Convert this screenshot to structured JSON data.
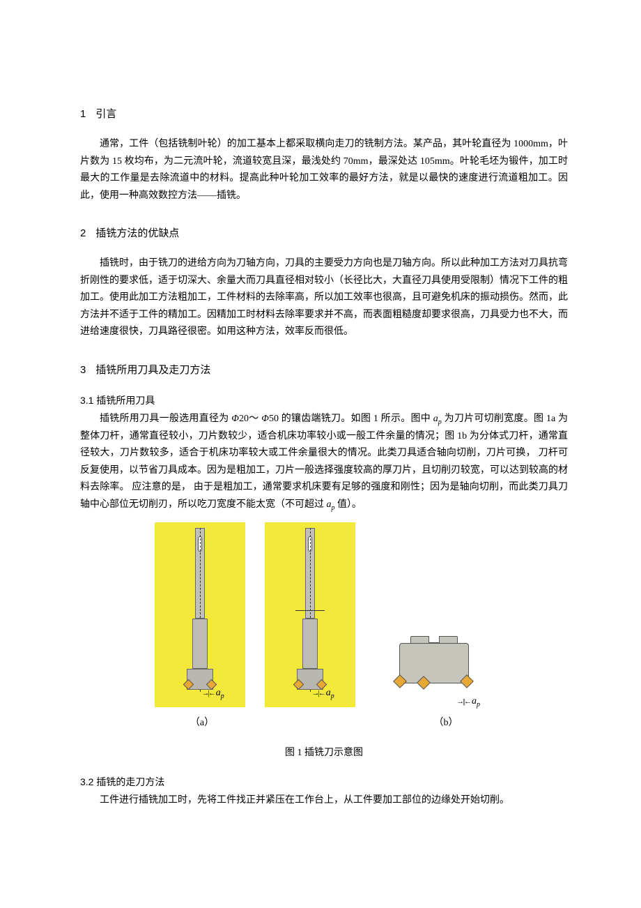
{
  "sections": {
    "s1": {
      "num": "1",
      "title": "引言",
      "p1": "通常，工件（包括铣制叶轮）的加工基本上都采取横向走刀的铣制方法。某产品，其叶轮直径为 1000mm，叶片数为 15 枚均布，为二元流叶轮，流道较宽且深，最浅处约 70mm，最深处达 105mm。叶轮毛坯为锻件，加工时最大的工作量是去除流道中的材料。提高此种叶轮加工效率的最好方法，就是以最快的速度进行流道粗加工。因此，使用一种高效数控方法——插铣。"
    },
    "s2": {
      "num": "2",
      "title": "插铣方法的优缺点",
      "p1": "插铣时，由于铣刀的进给方向为刀轴方向，刀具的主要受力方向也是刀轴方向。所以此种加工方法对刀具抗弯折刚性的要求低，适于切深大、余量大而刀具直径相对较小（长径比大，大直径刀具使用受限制）情况下工件的粗加工。使用此加工方法粗加工，工件材料的去除率高，所以加工效率也很高，且可避免机床的振动损伤。然而，此方法并不适于工件的精加工。因精加工时材料去除率要求并不高，而表面粗糙度却要求很高，刀具受力也不大，而进给速度很快，刀具路径很密。如用这种方法，效率反而很低。"
    },
    "s3": {
      "num": "3",
      "title": "插铣所用刀具及走刀方法",
      "s31": {
        "num": "3.1",
        "title": "插铣所用刀具",
        "p_a": "插铣所用刀具一般选用直径为 ",
        "phi1": "Φ",
        "d1": "20～ ",
        "phi2": "Φ",
        "d2": "50 的镶齿端铣刀。如图 1 所示。图中 ",
        "p_b": "为刀片可切削宽度。图 1a 为整体刀杆，通常直径较小，刀片数较少，适合机床功率较小或一般工件余量的情况；图 1b 为分体式刀杆，通常直径较大，刀片数较多，适合于机床功率较大或工件余量很大的情况。此类刀具适合轴向切削，刀片可换， 刀杆可反复使用，以节省刀具成本。因为是粗加工，刀片一般选择强度较高的厚刀片，且切削刃较宽，可以达到较高的材料去除率。 应注意的是， 由于是粗加工，通常要求机床要有足够的强度和刚性；因为是轴向切削，而此类刀具刀轴中心部位无切削刃，所以吃刀宽度不能太宽（不可超过 ",
        "p_c": "值）。"
      },
      "s32": {
        "num": "3.2",
        "title": "插铣的走刀方法",
        "p1": "工件进行插铣加工时，先将工件找正并紧压在工作台上，从工件要加工部位的边缘处开始切削。"
      }
    }
  },
  "figure": {
    "ap_var": "a",
    "ap_sub": "p",
    "sublabel_a": "（a）",
    "sublabel_b": "（b）",
    "caption": "图 1  插铣刀示意图",
    "colors": {
      "panel_bg": "#f3e93a",
      "tool_body": "#c0c0b8",
      "insert": "#e8a838",
      "outline": "#666666"
    }
  }
}
